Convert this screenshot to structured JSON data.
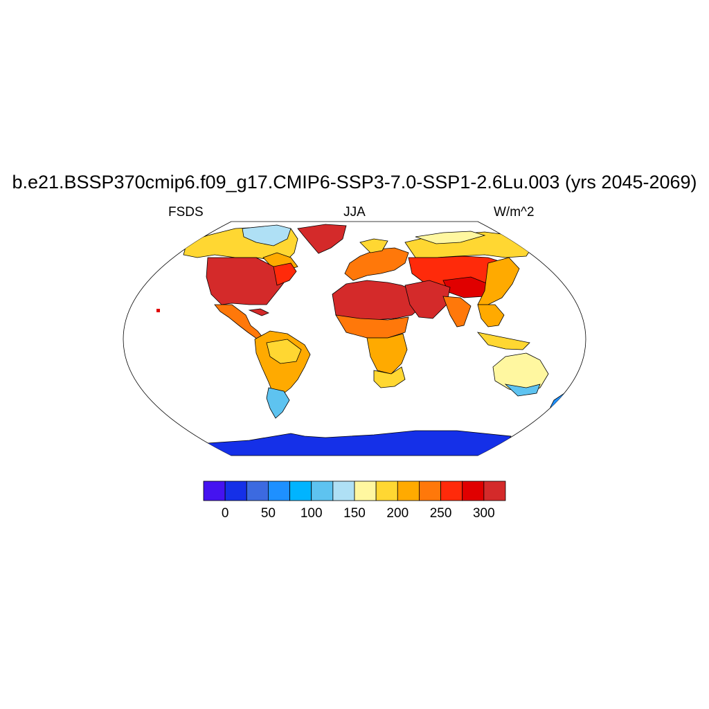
{
  "title": "b.e21.BSSP370cmip6.f09_g17.CMIP6-SSP3-7.0-SSP1-2.6Lu.003 (yrs 2045-2069)",
  "left_subtitle": "FSDS",
  "center_subtitle": "JJA",
  "right_subtitle": "W/m^2",
  "colorbar": {
    "colors": [
      "#4513f0",
      "#1530e8",
      "#3c6ae0",
      "#1e90ff",
      "#00b4ff",
      "#5ec3f0",
      "#afe0f5",
      "#fff7a0",
      "#ffd732",
      "#ffaa00",
      "#ff780a",
      "#ff2a0a",
      "#e00000",
      "#d42a2a"
    ],
    "labels": [
      "0",
      "50",
      "100",
      "150",
      "200",
      "250",
      "300"
    ]
  },
  "map_data": {
    "projection": "Robinson",
    "variable": "FSDS",
    "season": "JJA",
    "units": "W/m^2",
    "regions": [
      {
        "name": "North America",
        "level": 300
      },
      {
        "name": "Canada and Alaska",
        "level": 175
      },
      {
        "name": "Greenland",
        "level": 310
      },
      {
        "name": "Central America",
        "level": 290
      },
      {
        "name": "South America",
        "level": 220
      },
      {
        "name": "Southern South America",
        "level": 110
      },
      {
        "name": "North Africa",
        "level": 320
      },
      {
        "name": "Sahel",
        "level": 260
      },
      {
        "name": "Southern Africa",
        "level": 200
      },
      {
        "name": "Europe",
        "level": 260
      },
      {
        "name": "Middle East",
        "level": 320
      },
      {
        "name": "Siberia",
        "level": 220
      },
      {
        "name": "Central Asia",
        "level": 280
      },
      {
        "name": "South-East Asia",
        "level": 200
      },
      {
        "name": "Indonesia",
        "level": 190
      },
      {
        "name": "Australia",
        "level": 160
      },
      {
        "name": "New Zealand",
        "level": 100
      },
      {
        "name": "Antarctica",
        "level": 25
      }
    ]
  }
}
